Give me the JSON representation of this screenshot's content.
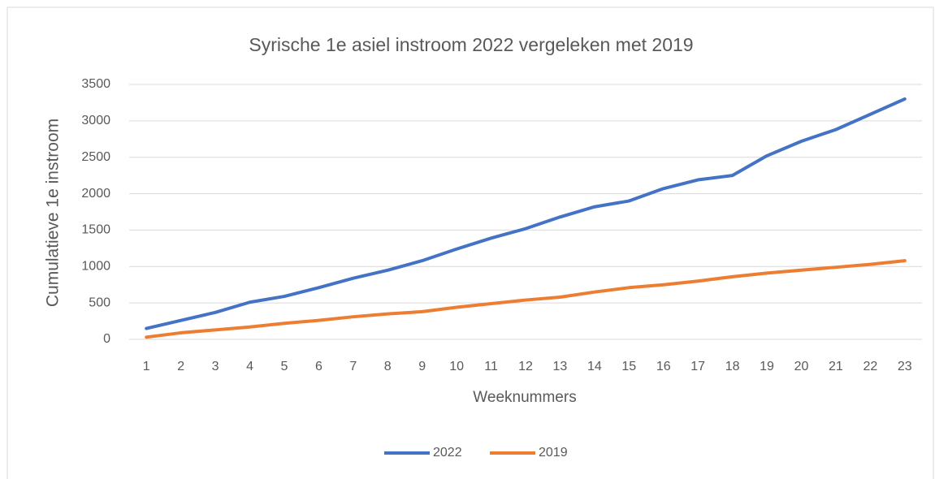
{
  "chart_data": {
    "type": "line",
    "title": "Syrische 1e asiel instroom 2022 vergeleken met 2019",
    "xlabel": "Weeknummers",
    "ylabel": "Cumulatieve  1e instroom",
    "categories": [
      "1",
      "2",
      "3",
      "4",
      "5",
      "6",
      "7",
      "8",
      "9",
      "10",
      "11",
      "12",
      "13",
      "14",
      "15",
      "16",
      "17",
      "18",
      "19",
      "20",
      "21",
      "22",
      "23"
    ],
    "series": [
      {
        "name": "2022",
        "color": "#4472c4",
        "values": [
          150,
          260,
          370,
          510,
          590,
          710,
          840,
          950,
          1080,
          1240,
          1390,
          1520,
          1680,
          1820,
          1900,
          2070,
          2190,
          2250,
          2520,
          2720,
          2880,
          3090,
          3300
        ]
      },
      {
        "name": "2019",
        "color": "#ed7d31",
        "values": [
          30,
          90,
          130,
          170,
          220,
          260,
          310,
          350,
          380,
          440,
          490,
          540,
          580,
          650,
          710,
          750,
          800,
          860,
          910,
          950,
          990,
          1030,
          1080
        ]
      }
    ],
    "ylim": [
      0,
      3500
    ],
    "yticks": [
      0,
      500,
      1000,
      1500,
      2000,
      2500,
      3000,
      3500
    ],
    "grid": true,
    "legend": "bottom"
  }
}
